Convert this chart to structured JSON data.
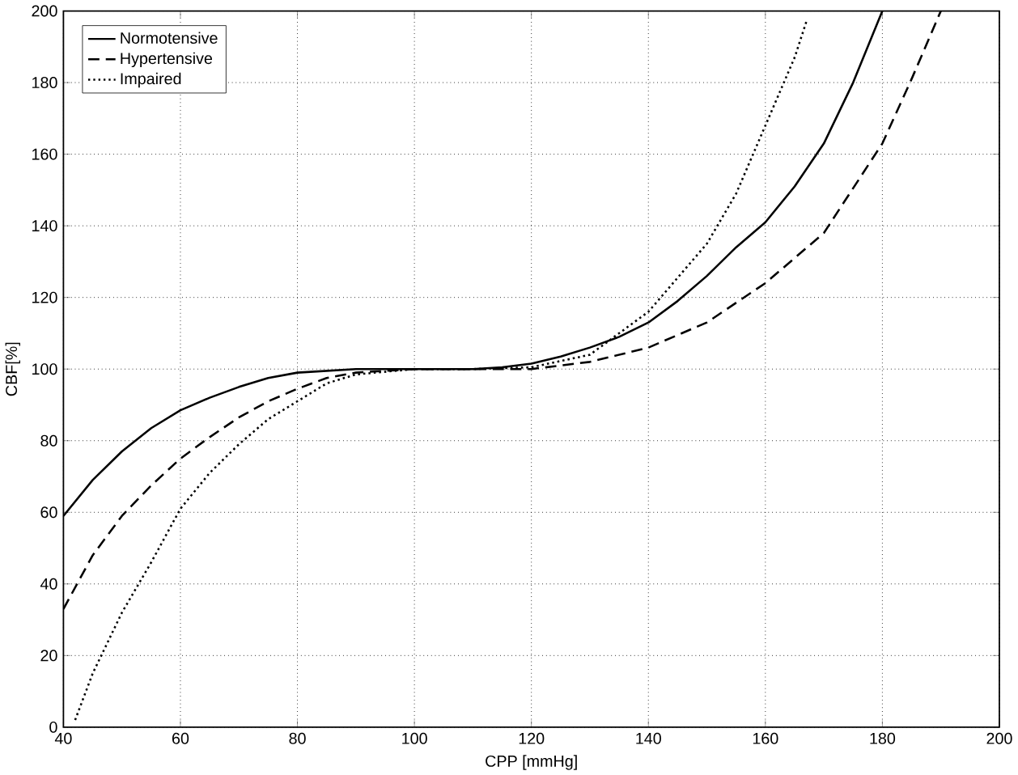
{
  "chart_data": {
    "type": "line",
    "xlabel": "CPP [mmHg]",
    "ylabel": "CBF[%]",
    "xlim": [
      40,
      200
    ],
    "ylim": [
      0,
      200
    ],
    "xticks": [
      40,
      60,
      80,
      100,
      120,
      140,
      160,
      180,
      200
    ],
    "yticks": [
      0,
      20,
      40,
      60,
      80,
      100,
      120,
      140,
      160,
      180,
      200
    ],
    "grid": true,
    "legend": "top left",
    "marker": "none",
    "series": [
      {
        "name": "Normotensive",
        "color": "#000000",
        "line_style": "solid",
        "x": [
          40,
          45,
          50,
          55,
          60,
          65,
          70,
          75,
          80,
          90,
          100,
          110,
          115,
          120,
          125,
          130,
          135,
          140,
          145,
          150,
          155,
          160,
          165,
          170,
          175,
          180
        ],
        "values": [
          59,
          69,
          77,
          83.5,
          88.5,
          92,
          95,
          97.5,
          99,
          100,
          100,
          100,
          100.5,
          101.5,
          103.5,
          106,
          109,
          113,
          119,
          126,
          134,
          141,
          151,
          163,
          180,
          200
        ]
      },
      {
        "name": "Hypertensive",
        "color": "#000000",
        "line_style": "dashed",
        "x": [
          40,
          45,
          50,
          55,
          60,
          65,
          70,
          75,
          80,
          85,
          90,
          100,
          110,
          120,
          130,
          140,
          150,
          160,
          170,
          180,
          185,
          190
        ],
        "values": [
          33,
          48,
          59,
          67.5,
          75,
          81,
          86.5,
          91,
          94.5,
          97.5,
          99,
          100,
          100,
          100,
          102,
          106,
          113,
          124,
          138,
          163,
          181,
          200
        ]
      },
      {
        "name": "Impaired",
        "color": "#000000",
        "line_style": "dotted",
        "x": [
          42,
          45,
          50,
          55,
          60,
          65,
          70,
          75,
          80,
          85,
          90,
          100,
          110,
          120,
          130,
          140,
          150,
          155,
          160,
          165,
          167
        ],
        "values": [
          2,
          15,
          32,
          46,
          61,
          71,
          79,
          86,
          91,
          96,
          98.5,
          100,
          100,
          100.5,
          104,
          116,
          135,
          149,
          168,
          187,
          197
        ]
      }
    ]
  }
}
